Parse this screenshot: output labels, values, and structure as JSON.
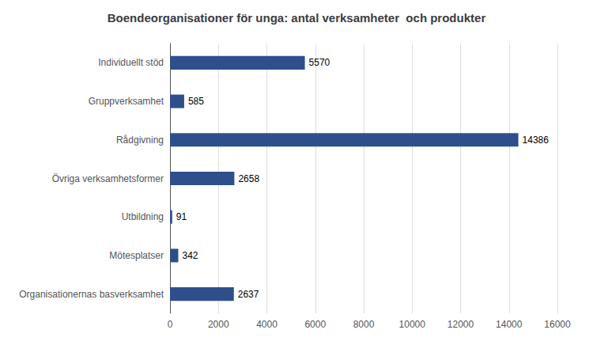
{
  "chart_data": {
    "type": "bar",
    "orientation": "horizontal",
    "title": "Boendeorganisationer för unga: antal verksamheter  och produkter",
    "categories": [
      "Organisationernas basverksamhet",
      "Mötesplatser",
      "Utbildning",
      "Övriga verksamhetsformer",
      "Rådgivning",
      "Gruppverksamhet",
      "Individuellt stöd"
    ],
    "values": [
      2637,
      342,
      91,
      2658,
      14386,
      585,
      5570
    ],
    "color": "#2e4f8c",
    "xlim": [
      0,
      16000
    ],
    "xticks": [
      0,
      2000,
      4000,
      6000,
      8000,
      10000,
      12000,
      14000,
      16000
    ],
    "grid": true,
    "data_labels": true
  }
}
